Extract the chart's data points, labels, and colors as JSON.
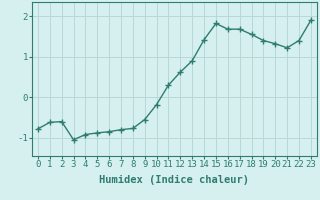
{
  "x": [
    0,
    1,
    2,
    3,
    4,
    5,
    6,
    7,
    8,
    9,
    10,
    11,
    12,
    13,
    14,
    15,
    16,
    17,
    18,
    19,
    20,
    21,
    22,
    23
  ],
  "y": [
    -0.78,
    -0.62,
    -0.6,
    -1.05,
    -0.92,
    -0.88,
    -0.85,
    -0.8,
    -0.77,
    -0.55,
    -0.18,
    0.3,
    0.62,
    0.9,
    1.42,
    1.82,
    1.68,
    1.68,
    1.55,
    1.4,
    1.32,
    1.22,
    1.4,
    1.9
  ],
  "line_color": "#2e7d6e",
  "marker": "+",
  "marker_size": 4,
  "bg_color": "#d6f0f0",
  "grid_color": "#b8d8d8",
  "xlabel": "Humidex (Indice chaleur)",
  "xlim": [
    -0.5,
    23.5
  ],
  "ylim": [
    -1.45,
    2.35
  ],
  "yticks": [
    -1,
    0,
    1,
    2
  ],
  "xticks": [
    0,
    1,
    2,
    3,
    4,
    5,
    6,
    7,
    8,
    9,
    10,
    11,
    12,
    13,
    14,
    15,
    16,
    17,
    18,
    19,
    20,
    21,
    22,
    23
  ],
  "xlabel_fontsize": 7.5,
  "tick_fontsize": 6.5,
  "line_width": 1.0
}
